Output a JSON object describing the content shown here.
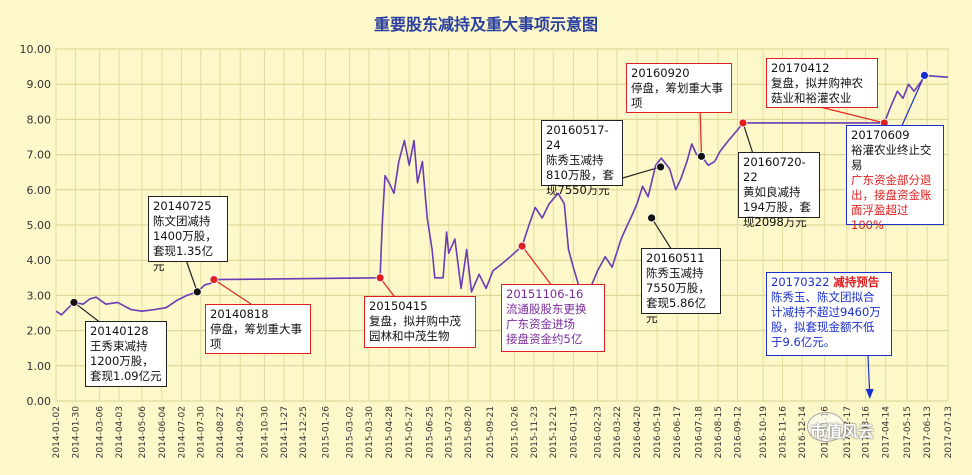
{
  "chart_data": {
    "type": "line",
    "title": "重要股东减持及重大事项示意图",
    "ylim": [
      0,
      10
    ],
    "yticks": [
      "0.00",
      "1.00",
      "2.00",
      "3.00",
      "4.00",
      "5.00",
      "6.00",
      "7.00",
      "8.00",
      "9.00",
      "10.00"
    ],
    "xlim": [
      "2014-01-02",
      "2017-07-13"
    ],
    "xticks": [
      "2014-01-02",
      "2014-01-30",
      "2014-03-06",
      "2014-04-03",
      "2014-05-06",
      "2014-06-04",
      "2014-07-02",
      "2014-07-30",
      "2014-08-27",
      "2014-09-25",
      "2014-10-30",
      "2014-11-27",
      "2014-12-25",
      "2015-01-26",
      "2015-03-02",
      "2015-03-30",
      "2015-04-28",
      "2015-05-27",
      "2015-06-25",
      "2015-07-23",
      "2015-08-20",
      "2015-09-21",
      "2015-10-26",
      "2015-11-23",
      "2015-12-21",
      "2016-01-19",
      "2016-02-23",
      "2016-03-22",
      "2016-04-20",
      "2016-05-19",
      "2016-06-17",
      "2016-07-18",
      "2016-08-15",
      "2016-09-12",
      "2016-10-19",
      "2016-11-16",
      "2016-12-14",
      "2017-01-16",
      "2017-02-17",
      "2017-03-16",
      "2017-04-14",
      "2017-05-15",
      "2017-06-13",
      "2017-07-13"
    ],
    "series": [
      {
        "color": "#6a3bb5",
        "points": [
          [
            "2014-01-02",
            2.55
          ],
          [
            "2014-01-10",
            2.45
          ],
          [
            "2014-01-20",
            2.65
          ],
          [
            "2014-01-28",
            2.8
          ],
          [
            "2014-02-10",
            2.75
          ],
          [
            "2014-02-20",
            2.9
          ],
          [
            "2014-03-01",
            2.95
          ],
          [
            "2014-03-15",
            2.75
          ],
          [
            "2014-04-01",
            2.8
          ],
          [
            "2014-04-20",
            2.6
          ],
          [
            "2014-05-06",
            2.55
          ],
          [
            "2014-05-25",
            2.6
          ],
          [
            "2014-06-10",
            2.65
          ],
          [
            "2014-06-25",
            2.85
          ],
          [
            "2014-07-10",
            3.0
          ],
          [
            "2014-07-25",
            3.1
          ],
          [
            "2014-08-05",
            3.3
          ],
          [
            "2014-08-15",
            3.35
          ],
          [
            "2014-08-18",
            3.45
          ],
          [
            "2015-04-15",
            3.5
          ],
          [
            "2015-04-18",
            5.0
          ],
          [
            "2015-04-22",
            6.4
          ],
          [
            "2015-04-28",
            6.2
          ],
          [
            "2015-05-05",
            5.9
          ],
          [
            "2015-05-12",
            6.8
          ],
          [
            "2015-05-20",
            7.4
          ],
          [
            "2015-05-27",
            6.7
          ],
          [
            "2015-06-03",
            7.4
          ],
          [
            "2015-06-08",
            6.2
          ],
          [
            "2015-06-15",
            6.8
          ],
          [
            "2015-06-22",
            5.2
          ],
          [
            "2015-06-29",
            4.3
          ],
          [
            "2015-07-03",
            3.5
          ],
          [
            "2015-07-15",
            3.5
          ],
          [
            "2015-07-20",
            4.8
          ],
          [
            "2015-07-23",
            4.2
          ],
          [
            "2015-08-01",
            4.6
          ],
          [
            "2015-08-10",
            3.2
          ],
          [
            "2015-08-18",
            4.3
          ],
          [
            "2015-08-25",
            3.1
          ],
          [
            "2015-09-05",
            3.6
          ],
          [
            "2015-09-15",
            3.2
          ],
          [
            "2015-09-25",
            3.7
          ],
          [
            "2015-10-08",
            3.9
          ],
          [
            "2015-10-20",
            4.1
          ],
          [
            "2015-11-06",
            4.4
          ],
          [
            "2015-11-16",
            5.0
          ],
          [
            "2015-11-25",
            5.5
          ],
          [
            "2015-12-05",
            5.2
          ],
          [
            "2015-12-15",
            5.6
          ],
          [
            "2015-12-28",
            5.9
          ],
          [
            "2016-01-06",
            5.6
          ],
          [
            "2016-01-12",
            4.3
          ],
          [
            "2016-01-19",
            3.8
          ],
          [
            "2016-01-28",
            3.2
          ],
          [
            "2016-02-08",
            3.0
          ],
          [
            "2016-02-23",
            3.7
          ],
          [
            "2016-03-05",
            4.1
          ],
          [
            "2016-03-15",
            3.8
          ],
          [
            "2016-03-28",
            4.6
          ],
          [
            "2016-04-06",
            5.0
          ],
          [
            "2016-04-11",
            5.2
          ],
          [
            "2016-04-20",
            5.6
          ],
          [
            "2016-04-28",
            6.1
          ],
          [
            "2016-05-06",
            5.8
          ],
          [
            "2016-05-17",
            6.7
          ],
          [
            "2016-05-25",
            6.9
          ],
          [
            "2016-06-06",
            6.6
          ],
          [
            "2016-06-15",
            6.0
          ],
          [
            "2016-06-22",
            6.3
          ],
          [
            "2016-07-01",
            6.8
          ],
          [
            "2016-07-08",
            7.3
          ],
          [
            "2016-07-15",
            7.0
          ],
          [
            "2016-07-22",
            6.95
          ],
          [
            "2016-08-01",
            6.7
          ],
          [
            "2016-08-10",
            6.8
          ],
          [
            "2016-08-18",
            7.1
          ],
          [
            "2016-08-30",
            7.4
          ],
          [
            "2016-09-12",
            7.7
          ],
          [
            "2016-09-20",
            7.9
          ],
          [
            "2017-04-12",
            7.9
          ],
          [
            "2017-04-20",
            8.3
          ],
          [
            "2017-05-01",
            8.8
          ],
          [
            "2017-05-09",
            8.6
          ],
          [
            "2017-05-17",
            9.0
          ],
          [
            "2017-05-25",
            8.8
          ],
          [
            "2017-06-05",
            9.1
          ],
          [
            "2017-06-09",
            9.25
          ],
          [
            "2017-07-13",
            9.2
          ]
        ]
      }
    ],
    "markers": [
      {
        "date": "2014-01-28",
        "value": 2.8,
        "color": "#111111"
      },
      {
        "date": "2014-07-25",
        "value": 3.1,
        "color": "#111111"
      },
      {
        "date": "2014-08-18",
        "value": 3.45,
        "color": "#e02020"
      },
      {
        "date": "2015-04-15",
        "value": 3.5,
        "color": "#e02020"
      },
      {
        "date": "2015-11-06",
        "value": 4.4,
        "color": "#e02020"
      },
      {
        "date": "2016-05-11",
        "value": 5.2,
        "color": "#111111"
      },
      {
        "date": "2016-05-24",
        "value": 6.65,
        "color": "#111111"
      },
      {
        "date": "2016-07-22",
        "value": 6.95,
        "color": "#111111"
      },
      {
        "date": "2016-09-20",
        "value": 7.9,
        "color": "#e02020"
      },
      {
        "date": "2017-04-12",
        "value": 7.9,
        "color": "#e02020"
      },
      {
        "date": "2017-06-09",
        "value": 9.25,
        "color": "#1a2fd0"
      }
    ],
    "annotations": [
      {
        "id": "a1",
        "text": "20140128\n王秀束减持\n1200万股，\n套现1.09亿元"
      },
      {
        "id": "a2",
        "text": "20140725\n陈文团减持\n1400万股，\n套现1.35亿元"
      },
      {
        "id": "a3",
        "text": "20140818\n停盘，筹划重大事\n项"
      },
      {
        "id": "a4",
        "text": "20150415\n复盘，拟并购中茂\n园林和中茂生物"
      },
      {
        "id": "a5",
        "text": "20151106-16\n流通股股东更换\n广东资金进场\n接盘资金约5亿"
      },
      {
        "id": "a6",
        "text": "20160511\n陈秀玉减持\n7550万股，\n套现5.86亿元"
      },
      {
        "id": "a7",
        "text": "20160517-24\n陈秀玉减持\n810万股，套\n现7550万元"
      },
      {
        "id": "a8",
        "text": "20160920\n停盘，筹划重大事\n项"
      },
      {
        "id": "a9",
        "text": "20160720-22\n黄如良减持\n194万股，套\n现2098万元"
      },
      {
        "id": "a10",
        "text": "20170412\n复盘，拟并购神农\n菇业和裕灌农业"
      },
      {
        "id": "a11a",
        "text": "20170609\n裕灌农业终止交\n易"
      },
      {
        "id": "a11b",
        "text": "广东资金部分退\n出，接盘资金账\n面浮盈超过100%"
      },
      {
        "id": "a12a",
        "text": "20170322 "
      },
      {
        "id": "a12b",
        "text": "减持预告"
      },
      {
        "id": "a12c",
        "text": "陈秀玉、陈文团拟合\n计减持不超过9460万\n股，拟套现金额不低\n于9.6亿元。"
      }
    ],
    "grid": true,
    "legend": "none"
  },
  "watermark": "市值风云"
}
